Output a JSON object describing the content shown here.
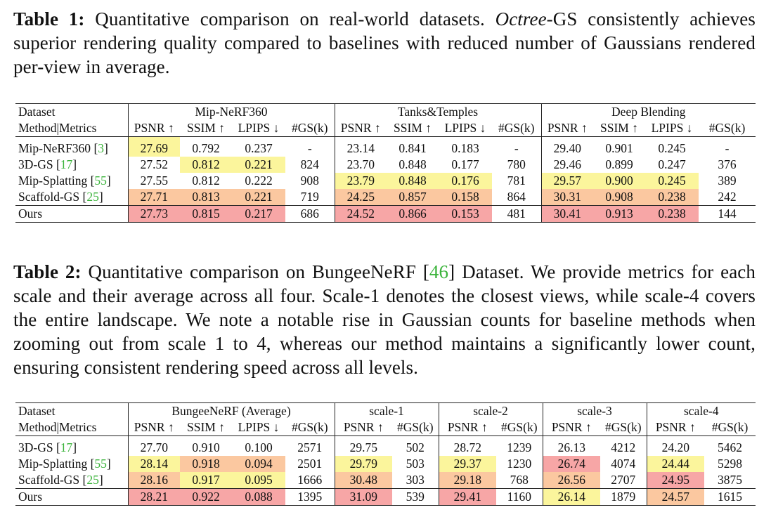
{
  "table1": {
    "caption": {
      "label": "Table 1:",
      "pre": "Quantitative comparison on real-world datasets.",
      "method": "Octree",
      "method_suffix": "-GS",
      "post": "consistently achieves superior rendering quality compared to baselines with reduced number of Gaussians rendered per-view in average."
    },
    "header": {
      "dataset": "Dataset",
      "method": "Method|Metrics",
      "groups": [
        "Mip-NeRF360",
        "Tanks&Temples",
        "Deep Blending"
      ],
      "metrics": [
        "PSNR ↑",
        "SSIM ↑",
        "LPIPS ↓",
        "#GS(k)"
      ]
    },
    "rows": [
      {
        "method": "Mip-NeRF360",
        "ref": "3",
        "values": [
          "27.69",
          "0.792",
          "0.237",
          "-",
          "23.14",
          "0.841",
          "0.183",
          "-",
          "29.40",
          "0.901",
          "0.245",
          "-"
        ],
        "colors": [
          "c3",
          "",
          "",
          "",
          "",
          "",
          "",
          "",
          "",
          "",
          "",
          ""
        ]
      },
      {
        "method": "3D-GS",
        "ref": "17",
        "values": [
          "27.52",
          "0.812",
          "0.221",
          "824",
          "23.70",
          "0.848",
          "0.177",
          "780",
          "29.46",
          "0.899",
          "0.247",
          "376"
        ],
        "colors": [
          "",
          "c3",
          "c3",
          "",
          "",
          "",
          "",
          "",
          "",
          "",
          "",
          ""
        ]
      },
      {
        "method": "Mip-Splatting",
        "ref": "55",
        "values": [
          "27.55",
          "0.812",
          "0.222",
          "908",
          "23.79",
          "0.848",
          "0.176",
          "781",
          "29.57",
          "0.900",
          "0.245",
          "389"
        ],
        "colors": [
          "",
          "",
          "",
          "",
          "c3",
          "c3",
          "c3",
          "",
          "c3",
          "c3",
          "c3",
          ""
        ]
      },
      {
        "method": "Scaffold-GS",
        "ref": "25",
        "values": [
          "27.71",
          "0.813",
          "0.221",
          "719",
          "24.25",
          "0.857",
          "0.158",
          "864",
          "30.31",
          "0.908",
          "0.238",
          "242"
        ],
        "colors": [
          "c2",
          "c2",
          "c2",
          "",
          "c2",
          "c2",
          "c2",
          "",
          "c2",
          "c2",
          "c2",
          ""
        ]
      },
      {
        "method": "Ours",
        "ref": "",
        "values": [
          "27.73",
          "0.815",
          "0.217",
          "686",
          "24.52",
          "0.866",
          "0.153",
          "481",
          "30.41",
          "0.913",
          "0.238",
          "144"
        ],
        "colors": [
          "c1",
          "c1",
          "c1",
          "",
          "c1",
          "c1",
          "c1",
          "",
          "c1",
          "c1",
          "c1",
          ""
        ]
      }
    ]
  },
  "table2": {
    "caption": {
      "label": "Table 2:",
      "pre": "Quantitative comparison on BungeeNeRF",
      "ref": "46",
      "post": "Dataset. We provide metrics for each scale and their average across all four. Scale-1 denotes the closest views, while scale-4 covers the entire landscape. We note a notable rise in Gaussian counts for baseline methods when zooming out from scale 1 to 4, whereas our method maintains a significantly lower count, ensuring consistent rendering speed across all levels."
    },
    "header": {
      "dataset": "Dataset",
      "method": "Method|Metrics",
      "groups": [
        "BungeeNeRF (Average)",
        "scale-1",
        "scale-2",
        "scale-3",
        "scale-4"
      ],
      "metrics_avg": [
        "PSNR ↑",
        "SSIM ↑",
        "LPIPS ↓",
        "#GS(k)"
      ],
      "metrics_scale": [
        "PSNR ↑",
        "#GS(k)"
      ]
    },
    "rows": [
      {
        "method": "3D-GS",
        "ref": "17",
        "values": [
          "27.70",
          "0.910",
          "0.100",
          "2571",
          "29.75",
          "502",
          "28.72",
          "1239",
          "26.13",
          "4212",
          "24.20",
          "5462"
        ],
        "colors": [
          "",
          "",
          "",
          "",
          "",
          "",
          "",
          "",
          "",
          "",
          "",
          ""
        ]
      },
      {
        "method": "Mip-Splatting",
        "ref": "55",
        "values": [
          "28.14",
          "0.918",
          "0.094",
          "2501",
          "29.79",
          "503",
          "29.37",
          "1230",
          "26.74",
          "4074",
          "24.44",
          "5298"
        ],
        "colors": [
          "c3",
          "c2",
          "c2",
          "",
          "c3",
          "",
          "c3",
          "",
          "c1",
          "",
          "c3",
          ""
        ]
      },
      {
        "method": "Scaffold-GS",
        "ref": "25",
        "values": [
          "28.16",
          "0.917",
          "0.095",
          "1666",
          "30.48",
          "303",
          "29.18",
          "768",
          "26.56",
          "2707",
          "24.95",
          "3875"
        ],
        "colors": [
          "c2",
          "c3",
          "c3",
          "",
          "c2",
          "",
          "c2",
          "",
          "c2",
          "",
          "c1",
          ""
        ]
      },
      {
        "method": "Ours",
        "ref": "",
        "values": [
          "28.21",
          "0.922",
          "0.088",
          "1395",
          "31.09",
          "539",
          "29.41",
          "1160",
          "26.14",
          "1879",
          "24.57",
          "1615"
        ],
        "colors": [
          "c1",
          "c1",
          "c1",
          "",
          "c1",
          "",
          "c1",
          "",
          "c3",
          "",
          "c2",
          ""
        ]
      }
    ]
  }
}
